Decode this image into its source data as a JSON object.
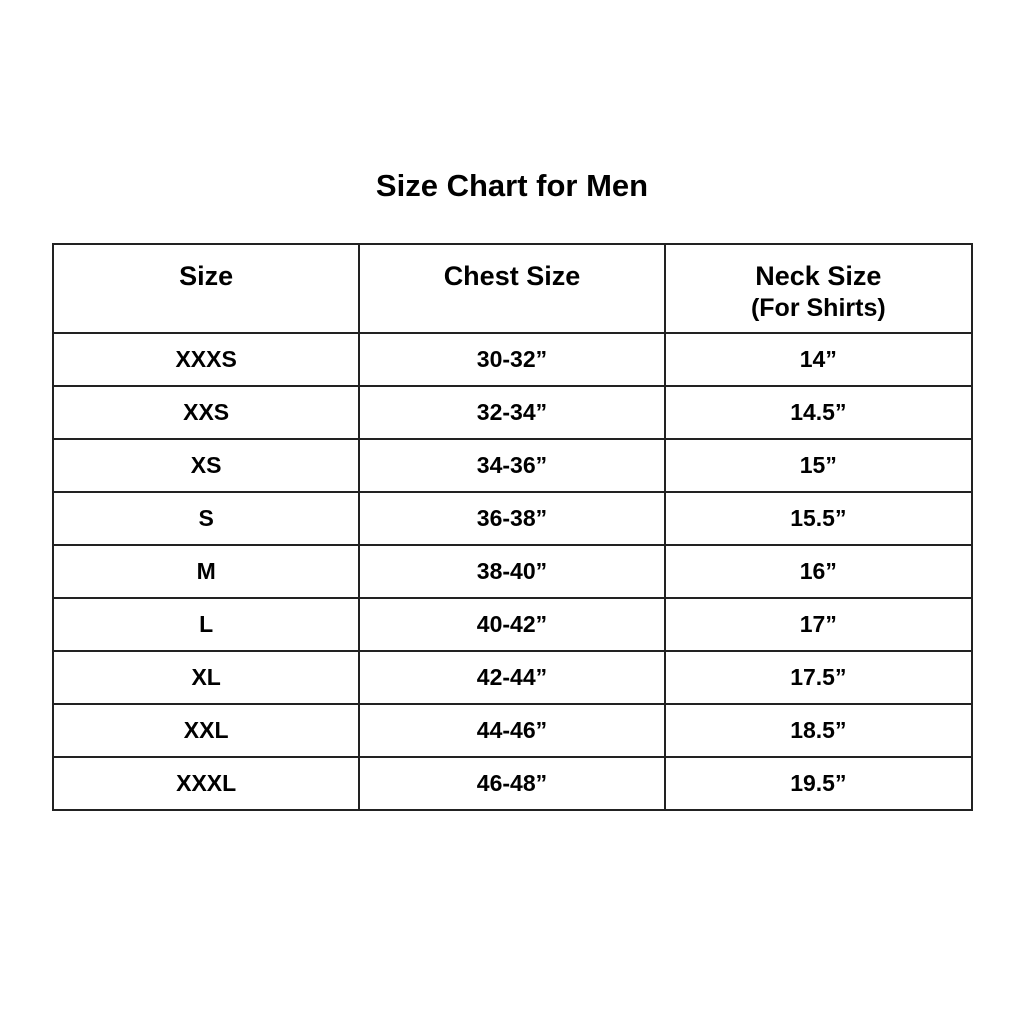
{
  "title": "Size Chart for Men",
  "table": {
    "headers": [
      "Size",
      "Chest Size",
      "Neck Size"
    ],
    "header_sub": "(For Shirts)",
    "rows": [
      [
        "XXXS",
        "30-32”",
        "14”"
      ],
      [
        "XXS",
        "32-34”",
        "14.5”"
      ],
      [
        "XS",
        "34-36”",
        "15”"
      ],
      [
        "S",
        "36-38”",
        "15.5”"
      ],
      [
        "M",
        "38-40”",
        "16”"
      ],
      [
        "L",
        "40-42”",
        "17”"
      ],
      [
        "XL",
        "42-44”",
        "17.5”"
      ],
      [
        "XXL",
        "44-46”",
        "18.5”"
      ],
      [
        "XXXL",
        "46-48”",
        "19.5”"
      ]
    ]
  }
}
